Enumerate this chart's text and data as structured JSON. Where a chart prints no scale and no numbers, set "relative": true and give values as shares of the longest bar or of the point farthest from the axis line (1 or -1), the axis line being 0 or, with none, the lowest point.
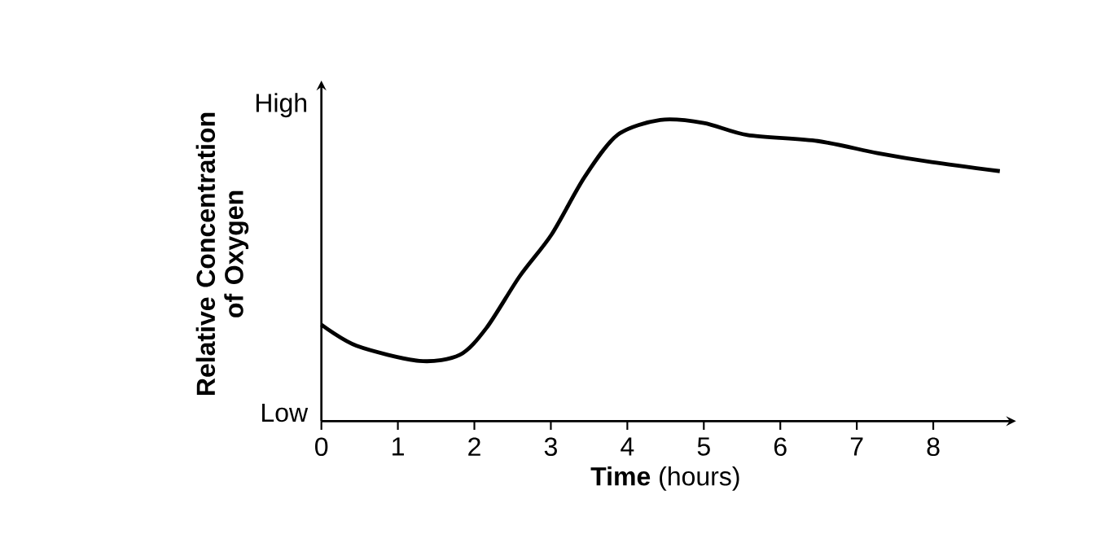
{
  "chart_data": {
    "type": "line",
    "xlabel": "**Time** (hours)",
    "ylabel": "Relative Concentration of Oxygen",
    "xlim": [
      0,
      9
    ],
    "xticks": [
      0,
      1,
      2,
      3,
      4,
      5,
      6,
      7,
      8
    ],
    "relative": true,
    "annotations": [
      "High",
      "Low"
    ],
    "marker": "none",
    "line_style": "solid",
    "series": [
      {
        "color": "#000000",
        "x": [
          0,
          0.46,
          1.28,
          1.81,
          2.16,
          2.59,
          3.01,
          3.44,
          3.87,
          4.43,
          5.0,
          5.57,
          6.49,
          7.27,
          7.98,
          8.87
        ],
        "values": [
          0.32,
          0.25,
          0.2,
          0.22,
          0.31,
          0.48,
          0.62,
          0.81,
          0.95,
          1.0,
          0.99,
          0.95,
          0.93,
          0.89,
          0.86,
          0.83
        ]
      }
    ]
  }
}
